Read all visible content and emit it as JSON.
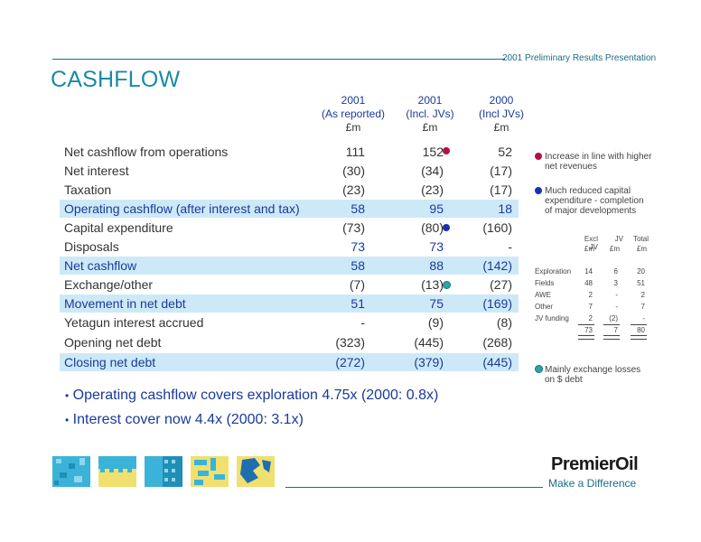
{
  "header": {
    "presentation": "2001 Preliminary Results Presentation",
    "title": "CASHFLOW"
  },
  "columns": [
    {
      "line1": "2001",
      "line2": "(As reported)",
      "unit": "£m"
    },
    {
      "line1": "2001",
      "line2": "(Incl. JVs)",
      "unit": "£m"
    },
    {
      "line1": "2000",
      "line2": "(Incl JVs)",
      "unit": "£m"
    }
  ],
  "rows": [
    {
      "label": "Net cashflow from operations",
      "v1": "111",
      "v2": "152",
      "v3": "52"
    },
    {
      "label": "Net interest",
      "v1": "(30)",
      "v2": "(34)",
      "v3": "(17)"
    },
    {
      "label": "Taxation",
      "v1": "(23)",
      "v2": "(23)",
      "v3": "(17)"
    },
    {
      "label": "Operating cashflow (after interest and tax)",
      "v1": "58",
      "v2": "95",
      "v3": "18"
    },
    {
      "label": "Capital expenditure",
      "v1": "(73)",
      "v2": "(80)",
      "v3": "(160)"
    },
    {
      "label": "Disposals",
      "v1": "73",
      "v2": "73",
      "v3": "-"
    },
    {
      "label": "Net cashflow",
      "v1": "58",
      "v2": "88",
      "v3": "(142)"
    },
    {
      "label": "Exchange/other",
      "v1": "(7)",
      "v2": "(13)",
      "v3": "(27)"
    },
    {
      "label": "Movement in net debt",
      "v1": "51",
      "v2": "75",
      "v3": "(169)"
    },
    {
      "label": "Yetagun interest accrued",
      "v1": "-",
      "v2": "(9)",
      "v3": "(8)"
    },
    {
      "label": "Opening net debt",
      "v1": "(323)",
      "v2": "(445)",
      "v3": "(268)"
    },
    {
      "label": "Closing net debt",
      "v1": "(272)",
      "v2": "(379)",
      "v3": "(445)"
    }
  ],
  "notes": {
    "revenues": "Increase in line with higher net revenues",
    "capex": "Much reduced capital expenditure - completion of major developments",
    "exchange": "Mainly exchange losses on $ debt"
  },
  "colors": {
    "red_dot": "#b0104a",
    "blue_dot": "#1a2fb0",
    "teal_dot": "#2aa7a0",
    "highlight": "#cde9f7"
  },
  "capex_table": {
    "headers": [
      "Excl JV",
      "JV",
      "Total"
    ],
    "units": [
      "£m",
      "£m",
      "£m"
    ],
    "rows": [
      {
        "label": "Exploration",
        "a": "14",
        "b": "6",
        "c": "20"
      },
      {
        "label": "Fields",
        "a": "48",
        "b": "3",
        "c": "51"
      },
      {
        "label": "AWE",
        "a": "2",
        "b": "-",
        "c": "2"
      },
      {
        "label": "Other",
        "a": "7",
        "b": "-",
        "c": "7"
      },
      {
        "label": "JV funding",
        "a": "2",
        "b": "(2)",
        "c": "-"
      }
    ],
    "totals": {
      "a": "73",
      "b": "7",
      "c": "80"
    }
  },
  "bullets": [
    "Operating cashflow covers exploration 4.75x (2000: 0.8x)",
    "Interest cover now 4.4x (2000: 3.1x)"
  ],
  "footer": {
    "logo": "PremierOil",
    "tagline": "Make a Difference"
  }
}
